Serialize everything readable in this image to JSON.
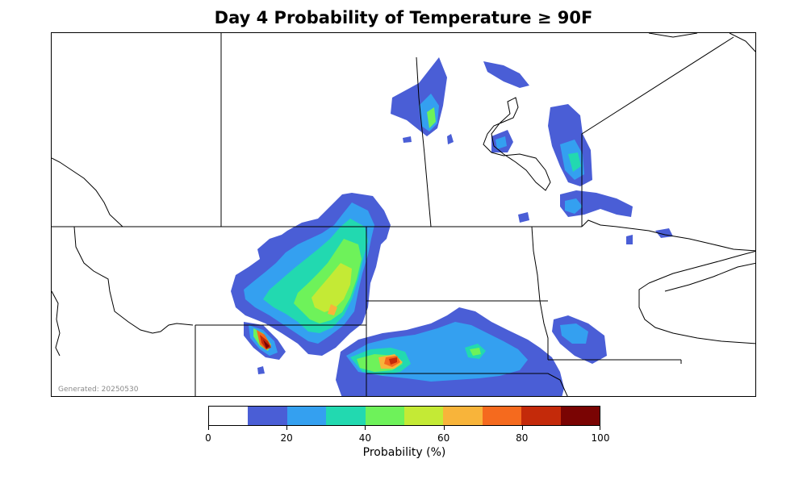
{
  "title": "Day 4 Probability of Temperature ≥ 90F",
  "generated_label": "Generated: 20250530",
  "colorbar": {
    "label": "Probability (%)",
    "colors": [
      "#ffffff",
      "#4a5ed6",
      "#34a0f0",
      "#22d9b0",
      "#6ef25a",
      "#c4ea35",
      "#f8b43a",
      "#f56a1e",
      "#c42a0a",
      "#7a0403"
    ],
    "tick_labels": [
      "0",
      "20",
      "40",
      "60",
      "80",
      "100"
    ],
    "tick_values": [
      0,
      20,
      40,
      60,
      80,
      100
    ]
  },
  "map": {
    "region": "Northern Plains / Canadian Prairies",
    "layers": [
      "state-borders",
      "province-borders",
      "coastlines-lakes",
      "probability-contours"
    ]
  }
}
